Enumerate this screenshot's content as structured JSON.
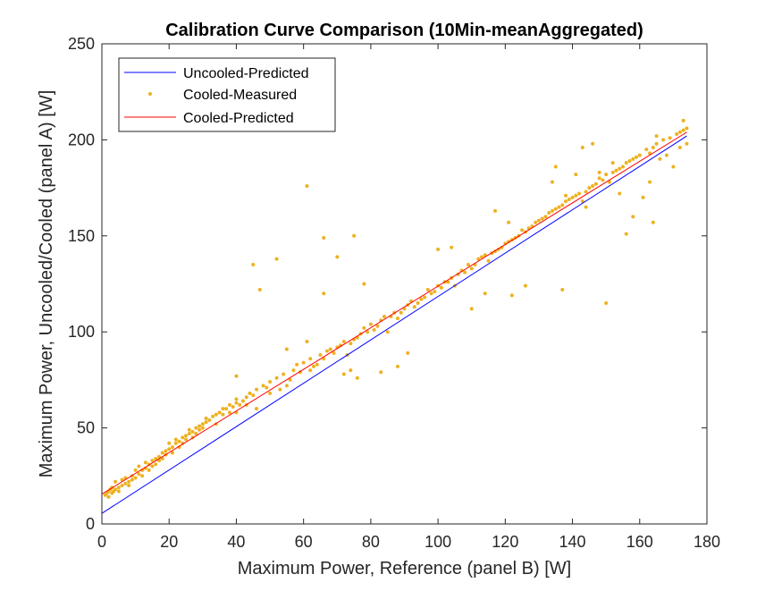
{
  "chart_data": {
    "type": "scatter",
    "title": "Calibration Curve Comparison (10Min-meanAggregated)",
    "xlabel": "Maximum Power, Reference (panel B) [W]",
    "ylabel": "Maximum Power, Uncooled/Cooled (panel A) [W]",
    "xlim": [
      0,
      180
    ],
    "ylim": [
      0,
      250
    ],
    "xticks": [
      0,
      20,
      40,
      60,
      80,
      100,
      120,
      140,
      160,
      180
    ],
    "yticks": [
      0,
      50,
      100,
      150,
      200,
      250
    ],
    "grid": false,
    "legend_position": "top-left",
    "series": [
      {
        "name": "Uncooled-Predicted",
        "kind": "line",
        "color": "#0000ff",
        "x": [
          0,
          174
        ],
        "y": [
          5.5,
          202
        ]
      },
      {
        "name": "Cooled-Measured",
        "kind": "scatter",
        "color": "#edb120",
        "points": [
          [
            1,
            15
          ],
          [
            1.5,
            16
          ],
          [
            2,
            17
          ],
          [
            2,
            14
          ],
          [
            2.5,
            18
          ],
          [
            3,
            16
          ],
          [
            3,
            19
          ],
          [
            3.5,
            17
          ],
          [
            4,
            18
          ],
          [
            4,
            22
          ],
          [
            5,
            19
          ],
          [
            5,
            17
          ],
          [
            6,
            20
          ],
          [
            6,
            23
          ],
          [
            7,
            21
          ],
          [
            7,
            24
          ],
          [
            8,
            22
          ],
          [
            8,
            20
          ],
          [
            9,
            25
          ],
          [
            9,
            23
          ],
          [
            10,
            24
          ],
          [
            10,
            28
          ],
          [
            11,
            26
          ],
          [
            11,
            30
          ],
          [
            12,
            28
          ],
          [
            12,
            25
          ],
          [
            13,
            29
          ],
          [
            13,
            32
          ],
          [
            14,
            31
          ],
          [
            14,
            28
          ],
          [
            15,
            33
          ],
          [
            15,
            30
          ],
          [
            16,
            34
          ],
          [
            16,
            31
          ],
          [
            17,
            35
          ],
          [
            17,
            33
          ],
          [
            18,
            37
          ],
          [
            18,
            34
          ],
          [
            19,
            38
          ],
          [
            19,
            36
          ],
          [
            20,
            39
          ],
          [
            20,
            42
          ],
          [
            21,
            40
          ],
          [
            21,
            37
          ],
          [
            22,
            42
          ],
          [
            22,
            44
          ],
          [
            23,
            43
          ],
          [
            23,
            40
          ],
          [
            24,
            45
          ],
          [
            24,
            42
          ],
          [
            25,
            46
          ],
          [
            25,
            44
          ],
          [
            26,
            47
          ],
          [
            26,
            49
          ],
          [
            27,
            48
          ],
          [
            27,
            45
          ],
          [
            28,
            50
          ],
          [
            28,
            47
          ],
          [
            29,
            51
          ],
          [
            29,
            49
          ],
          [
            30,
            52
          ],
          [
            30,
            50
          ],
          [
            31,
            53
          ],
          [
            31,
            55
          ],
          [
            32,
            54
          ],
          [
            33,
            56
          ],
          [
            34,
            57
          ],
          [
            34,
            52
          ],
          [
            35,
            58
          ],
          [
            36,
            57
          ],
          [
            36,
            60
          ],
          [
            37,
            60
          ],
          [
            38,
            62
          ],
          [
            38,
            58
          ],
          [
            39,
            61
          ],
          [
            40,
            63
          ],
          [
            40,
            65
          ],
          [
            41,
            62
          ],
          [
            42,
            64
          ],
          [
            43,
            66
          ],
          [
            44,
            68
          ],
          [
            45,
            67
          ],
          [
            46,
            70
          ],
          [
            48,
            72
          ],
          [
            49,
            71
          ],
          [
            50,
            74
          ],
          [
            52,
            76
          ],
          [
            54,
            78
          ],
          [
            55,
            72
          ],
          [
            57,
            80
          ],
          [
            58,
            83
          ],
          [
            60,
            84
          ],
          [
            62,
            86
          ],
          [
            63,
            82
          ],
          [
            65,
            88
          ],
          [
            67,
            90
          ],
          [
            68,
            91
          ],
          [
            70,
            92
          ],
          [
            72,
            95
          ],
          [
            73,
            88
          ],
          [
            75,
            96
          ],
          [
            77,
            99
          ],
          [
            78,
            102
          ],
          [
            80,
            104
          ],
          [
            82,
            103
          ],
          [
            84,
            108
          ],
          [
            85,
            100
          ],
          [
            87,
            110
          ],
          [
            88,
            107
          ],
          [
            90,
            112
          ],
          [
            92,
            116
          ],
          [
            94,
            115
          ],
          [
            96,
            118
          ],
          [
            97,
            122
          ],
          [
            98,
            120
          ],
          [
            100,
            124
          ],
          [
            102,
            126
          ],
          [
            104,
            128
          ],
          [
            105,
            124
          ],
          [
            107,
            132
          ],
          [
            109,
            135
          ],
          [
            110,
            133
          ],
          [
            112,
            138
          ],
          [
            114,
            140
          ],
          [
            115,
            137
          ],
          [
            117,
            142
          ],
          [
            119,
            144
          ],
          [
            120,
            146
          ],
          [
            122,
            148
          ],
          [
            124,
            150
          ],
          [
            126,
            152
          ],
          [
            128,
            155
          ],
          [
            130,
            158
          ],
          [
            132,
            160
          ],
          [
            134,
            163
          ],
          [
            136,
            165
          ],
          [
            138,
            168
          ],
          [
            140,
            170
          ],
          [
            142,
            172
          ],
          [
            143,
            168
          ],
          [
            145,
            175
          ],
          [
            147,
            177
          ],
          [
            148,
            180
          ],
          [
            150,
            182
          ],
          [
            151,
            178
          ],
          [
            153,
            184
          ],
          [
            155,
            186
          ],
          [
            156,
            188
          ],
          [
            158,
            190
          ],
          [
            160,
            192
          ],
          [
            162,
            195
          ],
          [
            164,
            196
          ],
          [
            165,
            198
          ],
          [
            167,
            200
          ],
          [
            169,
            201
          ],
          [
            171,
            203
          ],
          [
            172,
            204
          ],
          [
            173,
            205
          ],
          [
            174,
            206
          ],
          [
            45,
            135
          ],
          [
            47,
            122
          ],
          [
            52,
            138
          ],
          [
            61,
            176
          ],
          [
            66,
            149
          ],
          [
            70,
            139
          ],
          [
            75,
            150
          ],
          [
            78,
            125
          ],
          [
            72,
            78
          ],
          [
            76,
            76
          ],
          [
            40,
            77
          ],
          [
            55,
            91
          ],
          [
            74,
            80
          ],
          [
            61,
            95
          ],
          [
            83,
            79
          ],
          [
            88,
            82
          ],
          [
            91,
            89
          ],
          [
            100,
            143
          ],
          [
            104,
            144
          ],
          [
            110,
            112
          ],
          [
            114,
            120
          ],
          [
            117,
            163
          ],
          [
            121,
            157
          ],
          [
            122,
            119
          ],
          [
            126,
            124
          ],
          [
            134,
            178
          ],
          [
            135,
            186
          ],
          [
            137,
            122
          ],
          [
            138,
            171
          ],
          [
            141,
            182
          ],
          [
            143,
            196
          ],
          [
            144,
            165
          ],
          [
            146,
            198
          ],
          [
            148,
            183
          ],
          [
            150,
            115
          ],
          [
            152,
            188
          ],
          [
            154,
            172
          ],
          [
            156,
            151
          ],
          [
            158,
            160
          ],
          [
            161,
            170
          ],
          [
            163,
            178
          ],
          [
            164,
            157
          ],
          [
            165,
            202
          ],
          [
            166,
            190
          ],
          [
            168,
            192
          ],
          [
            170,
            186
          ],
          [
            172,
            196
          ],
          [
            173,
            210
          ],
          [
            174,
            198
          ],
          [
            66,
            120
          ],
          [
            40,
            58
          ],
          [
            43,
            62
          ],
          [
            46,
            60
          ],
          [
            50,
            68
          ],
          [
            53,
            70
          ],
          [
            56,
            75
          ],
          [
            59,
            79
          ],
          [
            62,
            80
          ],
          [
            64,
            83
          ],
          [
            66,
            86
          ],
          [
            69,
            89
          ],
          [
            71,
            93
          ],
          [
            74,
            94
          ],
          [
            76,
            97
          ],
          [
            79,
            100
          ],
          [
            81,
            101
          ],
          [
            83,
            106
          ],
          [
            86,
            108
          ],
          [
            89,
            110
          ],
          [
            91,
            114
          ],
          [
            93,
            113
          ],
          [
            95,
            117
          ],
          [
            99,
            121
          ],
          [
            101,
            123
          ],
          [
            103,
            126
          ],
          [
            106,
            130
          ],
          [
            108,
            131
          ],
          [
            111,
            135
          ],
          [
            113,
            139
          ],
          [
            116,
            141
          ],
          [
            118,
            143
          ],
          [
            121,
            147
          ],
          [
            123,
            149
          ],
          [
            125,
            153
          ],
          [
            127,
            154
          ],
          [
            129,
            157
          ],
          [
            131,
            159
          ],
          [
            133,
            162
          ],
          [
            135,
            164
          ],
          [
            137,
            166
          ],
          [
            139,
            169
          ],
          [
            141,
            171
          ],
          [
            144,
            173
          ],
          [
            146,
            176
          ],
          [
            149,
            179
          ],
          [
            152,
            183
          ],
          [
            154,
            185
          ],
          [
            157,
            189
          ],
          [
            159,
            191
          ],
          [
            163,
            193
          ]
        ]
      },
      {
        "name": "Cooled-Predicted",
        "kind": "line",
        "color": "#ff0000",
        "x": [
          0,
          174
        ],
        "y": [
          15.5,
          204
        ]
      }
    ]
  }
}
